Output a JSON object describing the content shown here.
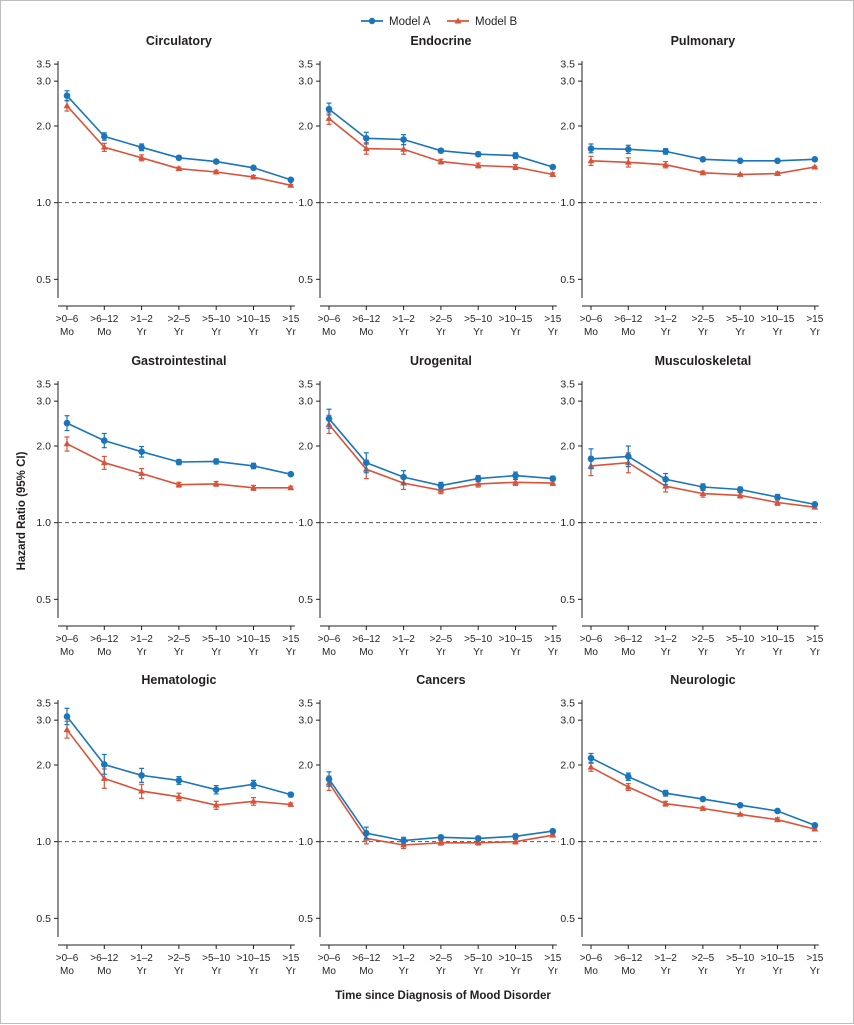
{
  "legend": [
    "Model A",
    "Model B"
  ],
  "y_axis_title": "Hazard Ratio (95% CI)",
  "x_axis_title": "Time since Diagnosis of Mood Disorder",
  "colors": {
    "model_a": "#1a75bb",
    "model_b": "#d9533a",
    "reference": "#555555",
    "axis": "#231f20"
  },
  "chart_data": {
    "type": "line",
    "yscale": "log",
    "ylim": [
      0.4,
      3.6
    ],
    "y_ticks": [
      "0.5",
      "1.0",
      "2.0",
      "3.0",
      "3.5"
    ],
    "y_tick_values": [
      0.5,
      1.0,
      2.0,
      3.0,
      3.5
    ],
    "reference_line": 1.0,
    "categories": [
      [
        ">0–6",
        "Mo"
      ],
      [
        ">6–12",
        "Mo"
      ],
      [
        ">1–2",
        "Yr"
      ],
      [
        ">2–5",
        "Yr"
      ],
      [
        ">5–10",
        "Yr"
      ],
      [
        ">10–15",
        "Yr"
      ],
      [
        ">15",
        "Yr"
      ]
    ],
    "panels": [
      {
        "title": "Circulatory",
        "series": [
          {
            "name": "Model A",
            "values": [
              2.63,
              1.82,
              1.65,
              1.5,
              1.45,
              1.37,
              1.23
            ],
            "ci_low": [
              2.52,
              1.76,
              1.6,
              1.48,
              1.43,
              1.35,
              1.22
            ],
            "ci_high": [
              2.75,
              1.88,
              1.7,
              1.53,
              1.47,
              1.39,
              1.24
            ]
          },
          {
            "name": "Model B",
            "values": [
              2.4,
              1.65,
              1.5,
              1.36,
              1.32,
              1.26,
              1.17
            ],
            "ci_low": [
              2.29,
              1.59,
              1.46,
              1.34,
              1.3,
              1.24,
              1.16
            ],
            "ci_high": [
              2.51,
              1.71,
              1.54,
              1.38,
              1.34,
              1.28,
              1.18
            ]
          }
        ]
      },
      {
        "title": "Endocrine",
        "series": [
          {
            "name": "Model A",
            "values": [
              2.33,
              1.79,
              1.77,
              1.6,
              1.55,
              1.53,
              1.38
            ],
            "ci_low": [
              2.21,
              1.7,
              1.69,
              1.57,
              1.52,
              1.49,
              1.36
            ],
            "ci_high": [
              2.46,
              1.89,
              1.85,
              1.63,
              1.58,
              1.57,
              1.4
            ]
          },
          {
            "name": "Model B",
            "values": [
              2.14,
              1.63,
              1.62,
              1.45,
              1.4,
              1.38,
              1.29
            ],
            "ci_low": [
              2.03,
              1.55,
              1.55,
              1.42,
              1.37,
              1.35,
              1.27
            ],
            "ci_high": [
              2.25,
              1.72,
              1.69,
              1.48,
              1.43,
              1.41,
              1.31
            ]
          }
        ]
      },
      {
        "title": "Pulmonary",
        "series": [
          {
            "name": "Model A",
            "values": [
              1.63,
              1.62,
              1.59,
              1.48,
              1.46,
              1.46,
              1.48
            ],
            "ci_low": [
              1.57,
              1.56,
              1.55,
              1.46,
              1.45,
              1.44,
              1.47
            ],
            "ci_high": [
              1.7,
              1.68,
              1.63,
              1.5,
              1.47,
              1.48,
              1.49
            ]
          },
          {
            "name": "Model B",
            "values": [
              1.46,
              1.44,
              1.41,
              1.31,
              1.29,
              1.3,
              1.38
            ],
            "ci_low": [
              1.4,
              1.38,
              1.37,
              1.29,
              1.28,
              1.28,
              1.37
            ],
            "ci_high": [
              1.52,
              1.5,
              1.45,
              1.33,
              1.3,
              1.32,
              1.39
            ]
          }
        ]
      },
      {
        "title": "Gastrointestinal",
        "series": [
          {
            "name": "Model A",
            "values": [
              2.46,
              2.1,
              1.9,
              1.73,
              1.74,
              1.67,
              1.55
            ],
            "ci_low": [
              2.3,
              1.97,
              1.81,
              1.69,
              1.7,
              1.63,
              1.53
            ],
            "ci_high": [
              2.63,
              2.24,
              1.99,
              1.77,
              1.78,
              1.71,
              1.57
            ]
          },
          {
            "name": "Model B",
            "values": [
              2.04,
              1.72,
              1.56,
              1.41,
              1.42,
              1.37,
              1.37
            ],
            "ci_low": [
              1.91,
              1.62,
              1.49,
              1.38,
              1.39,
              1.34,
              1.35
            ],
            "ci_high": [
              2.17,
              1.82,
              1.63,
              1.44,
              1.45,
              1.4,
              1.39
            ]
          }
        ]
      },
      {
        "title": "Urogenital",
        "series": [
          {
            "name": "Model A",
            "values": [
              2.56,
              1.72,
              1.51,
              1.4,
              1.49,
              1.53,
              1.49
            ],
            "ci_low": [
              2.35,
              1.57,
              1.42,
              1.36,
              1.45,
              1.48,
              1.46
            ],
            "ci_high": [
              2.79,
              1.88,
              1.6,
              1.44,
              1.53,
              1.58,
              1.52
            ]
          },
          {
            "name": "Model B",
            "values": [
              2.43,
              1.62,
              1.43,
              1.34,
              1.42,
              1.44,
              1.43
            ],
            "ci_low": [
              2.24,
              1.49,
              1.35,
              1.3,
              1.38,
              1.4,
              1.4
            ],
            "ci_high": [
              2.64,
              1.76,
              1.52,
              1.38,
              1.46,
              1.48,
              1.46
            ]
          }
        ]
      },
      {
        "title": "Musculoskeletal",
        "series": [
          {
            "name": "Model A",
            "values": [
              1.78,
              1.82,
              1.48,
              1.38,
              1.35,
              1.26,
              1.18
            ],
            "ci_low": [
              1.63,
              1.66,
              1.41,
              1.34,
              1.32,
              1.23,
              1.17
            ],
            "ci_high": [
              1.95,
              2.0,
              1.56,
              1.42,
              1.38,
              1.29,
              1.19
            ]
          },
          {
            "name": "Model B",
            "values": [
              1.67,
              1.72,
              1.39,
              1.3,
              1.28,
              1.2,
              1.15
            ],
            "ci_low": [
              1.53,
              1.57,
              1.32,
              1.26,
              1.25,
              1.17,
              1.14
            ],
            "ci_high": [
              1.82,
              1.88,
              1.46,
              1.34,
              1.31,
              1.23,
              1.16
            ]
          }
        ]
      },
      {
        "title": "Hematologic",
        "series": [
          {
            "name": "Model A",
            "values": [
              3.1,
              2.01,
              1.82,
              1.74,
              1.6,
              1.68,
              1.53
            ],
            "ci_low": [
              2.88,
              1.84,
              1.71,
              1.68,
              1.54,
              1.62,
              1.5
            ],
            "ci_high": [
              3.34,
              2.2,
              1.94,
              1.8,
              1.66,
              1.74,
              1.56
            ]
          },
          {
            "name": "Model B",
            "values": [
              2.75,
              1.77,
              1.58,
              1.5,
              1.39,
              1.44,
              1.4
            ],
            "ci_low": [
              2.55,
              1.62,
              1.48,
              1.45,
              1.34,
              1.39,
              1.38
            ],
            "ci_high": [
              2.97,
              1.93,
              1.68,
              1.55,
              1.44,
              1.49,
              1.42
            ]
          }
        ]
      },
      {
        "title": "Cancers",
        "series": [
          {
            "name": "Model A",
            "values": [
              1.76,
              1.08,
              1.01,
              1.04,
              1.03,
              1.05,
              1.1
            ],
            "ci_low": [
              1.65,
              1.03,
              0.98,
              1.02,
              1.01,
              1.03,
              1.09
            ],
            "ci_high": [
              1.88,
              1.14,
              1.04,
              1.06,
              1.05,
              1.07,
              1.11
            ]
          },
          {
            "name": "Model B",
            "values": [
              1.7,
              1.03,
              0.97,
              0.99,
              0.99,
              1.0,
              1.06
            ],
            "ci_low": [
              1.59,
              0.98,
              0.94,
              0.97,
              0.97,
              0.98,
              1.05
            ],
            "ci_high": [
              1.81,
              1.09,
              1.0,
              1.01,
              1.01,
              1.02,
              1.07
            ]
          }
        ]
      },
      {
        "title": "Neurologic",
        "series": [
          {
            "name": "Model A",
            "values": [
              2.13,
              1.8,
              1.55,
              1.47,
              1.39,
              1.32,
              1.16
            ],
            "ci_low": [
              2.05,
              1.74,
              1.51,
              1.45,
              1.38,
              1.3,
              1.15
            ],
            "ci_high": [
              2.22,
              1.86,
              1.59,
              1.49,
              1.4,
              1.34,
              1.17
            ]
          },
          {
            "name": "Model B",
            "values": [
              1.96,
              1.64,
              1.41,
              1.35,
              1.28,
              1.22,
              1.12
            ],
            "ci_low": [
              1.89,
              1.59,
              1.38,
              1.33,
              1.27,
              1.2,
              1.11
            ],
            "ci_high": [
              2.03,
              1.69,
              1.44,
              1.37,
              1.29,
              1.24,
              1.13
            ]
          }
        ]
      }
    ]
  }
}
